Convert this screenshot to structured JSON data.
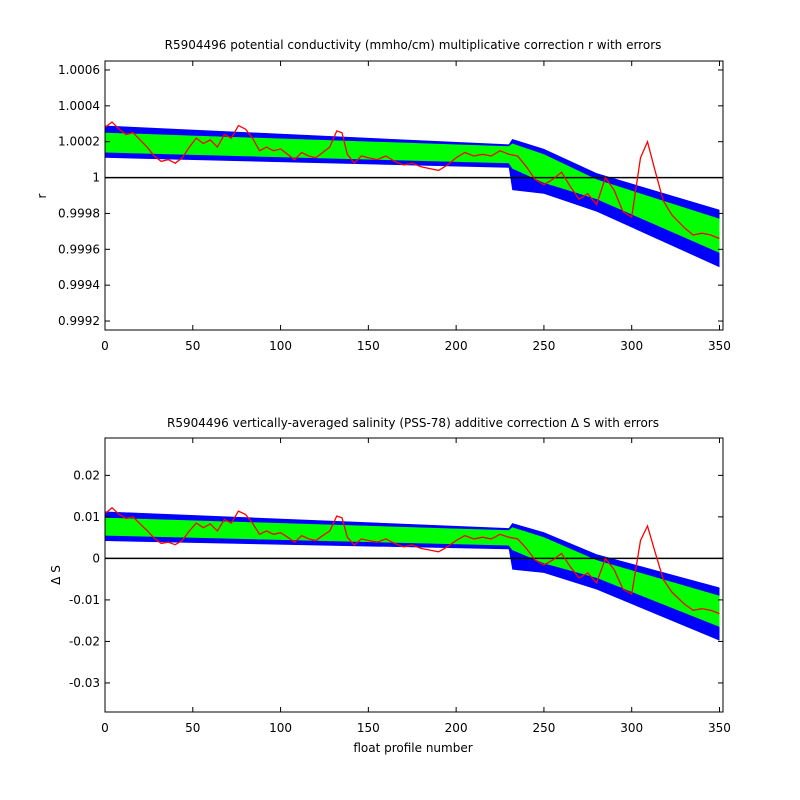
{
  "chart_data": [
    {
      "type": "line",
      "title": "R5904496 potential conductivity (mmho/cm) multiplicative correction r with errors",
      "xlabel": "",
      "ylabel": "r",
      "xlim": [
        0,
        352
      ],
      "ylim": [
        0.99915,
        1.00065
      ],
      "xticks": [
        0,
        50,
        100,
        150,
        200,
        250,
        300,
        350
      ],
      "xtick_labels": [
        "0",
        "50",
        "100",
        "150",
        "200",
        "250",
        "300",
        "350"
      ],
      "yticks": [
        0.9992,
        0.9994,
        0.9996,
        0.9998,
        1.0,
        1.0002,
        1.0004,
        1.0006
      ],
      "ytick_labels": [
        "0.9992",
        "0.9994",
        "0.9996",
        "0.9998",
        "1",
        "1.0002",
        "1.0004",
        "1.0006"
      ],
      "reference_line": 1.0,
      "band_x": [
        0,
        230,
        232,
        250,
        280,
        350
      ],
      "outer_upper": [
        1.00029,
        1.000185,
        1.000215,
        1.00016,
        1.000025,
        0.99982
      ],
      "inner_upper": [
        1.00025,
        1.000175,
        1.00019,
        1.00013,
        0.99999,
        0.99977
      ],
      "inner_lower": [
        1.00014,
        1.00008,
        1.00005,
        0.99997,
        0.99988,
        0.99958
      ],
      "outer_lower": [
        1.00011,
        1.000055,
        0.99993,
        0.99991,
        0.99981,
        0.9995
      ],
      "series": [
        {
          "x": [
            0,
            4,
            8,
            12,
            16,
            20,
            24,
            28,
            32,
            36,
            40,
            44,
            48,
            52,
            56,
            60,
            64,
            68,
            72,
            76,
            80,
            84,
            88,
            92,
            96,
            100,
            104,
            108,
            112,
            116,
            120,
            124,
            128,
            132,
            135,
            138,
            142,
            146,
            150,
            155,
            160,
            165,
            170,
            175,
            180,
            185,
            190,
            195,
            200,
            205,
            210,
            215,
            220,
            225,
            230,
            235,
            240,
            245,
            250,
            255,
            260,
            265,
            270,
            275,
            280,
            285,
            290,
            295,
            300,
            305,
            309,
            313,
            318,
            323,
            330,
            335,
            340,
            345,
            350
          ],
          "values": [
            1.00028,
            1.00031,
            1.00027,
            1.00024,
            1.00025,
            1.00021,
            1.00017,
            1.00012,
            1.00009,
            1.0001,
            1.00008,
            1.00011,
            1.00017,
            1.00022,
            1.00019,
            1.00021,
            1.00017,
            1.00024,
            1.00022,
            1.00029,
            1.00027,
            1.00022,
            1.00015,
            1.00017,
            1.00015,
            1.00016,
            1.00013,
            1.0001,
            1.00014,
            1.00012,
            1.00011,
            1.00014,
            1.00017,
            1.00026,
            1.00025,
            1.00013,
            1.00008,
            1.00012,
            1.00011,
            1.0001,
            1.00012,
            1.00009,
            1.00007,
            1.00008,
            1.00006,
            1.00005,
            1.00004,
            1.00007,
            1.00011,
            1.00014,
            1.00012,
            1.00013,
            1.00012,
            1.00015,
            1.00013,
            1.00012,
            1.00006,
            0.99999,
            0.99996,
            0.99999,
            1.00003,
            0.99995,
            0.99988,
            0.99991,
            0.99985,
            1.0,
            0.99993,
            0.99981,
            0.99978,
            1.00011,
            1.0002,
            1.00005,
            0.99987,
            0.99979,
            0.99972,
            0.99968,
            0.99969,
            0.99968,
            0.99966
          ]
        }
      ]
    },
    {
      "type": "line",
      "title": "R5904496 vertically-averaged salinity (PSS-78) additive correction Δ S with errors",
      "xlabel": "float profile number",
      "ylabel": "Δ S",
      "xlim": [
        0,
        352
      ],
      "ylim": [
        -0.037,
        0.029
      ],
      "xticks": [
        0,
        50,
        100,
        150,
        200,
        250,
        300,
        350
      ],
      "xtick_labels": [
        "0",
        "50",
        "100",
        "150",
        "200",
        "250",
        "300",
        "350"
      ],
      "yticks": [
        -0.03,
        -0.02,
        -0.01,
        0,
        0.01,
        0.02
      ],
      "ytick_labels": [
        "-0.03",
        "-0.02",
        "-0.01",
        "0",
        "0.01",
        "0.02"
      ],
      "reference_line": 0,
      "band_x": [
        0,
        230,
        232,
        250,
        280,
        350
      ],
      "outer_upper": [
        0.0113,
        0.0073,
        0.0085,
        0.0063,
        0.001,
        -0.007
      ],
      "inner_upper": [
        0.0098,
        0.0068,
        0.0075,
        0.0051,
        -0.0004,
        -0.009
      ],
      "inner_lower": [
        0.0055,
        0.0031,
        0.002,
        -0.0012,
        -0.0047,
        -0.0165
      ],
      "outer_lower": [
        0.0042,
        0.0022,
        -0.0027,
        -0.0035,
        -0.0075,
        -0.0198
      ],
      "series": [
        {
          "x": [
            0,
            4,
            8,
            12,
            16,
            20,
            24,
            28,
            32,
            36,
            40,
            44,
            48,
            52,
            56,
            60,
            64,
            68,
            72,
            76,
            80,
            84,
            88,
            92,
            96,
            100,
            104,
            108,
            112,
            116,
            120,
            124,
            128,
            132,
            135,
            138,
            142,
            146,
            150,
            155,
            160,
            165,
            170,
            175,
            180,
            185,
            190,
            195,
            200,
            205,
            210,
            215,
            220,
            225,
            230,
            235,
            240,
            245,
            250,
            255,
            260,
            265,
            270,
            275,
            280,
            285,
            290,
            295,
            300,
            305,
            309,
            313,
            318,
            323,
            330,
            335,
            340,
            345,
            350
          ],
          "values": [
            0.0108,
            0.0122,
            0.0106,
            0.0096,
            0.01,
            0.0083,
            0.0067,
            0.0049,
            0.0036,
            0.0039,
            0.0033,
            0.0043,
            0.0066,
            0.0085,
            0.0074,
            0.0083,
            0.0066,
            0.0094,
            0.0085,
            0.0114,
            0.0106,
            0.0085,
            0.0058,
            0.0066,
            0.0058,
            0.0062,
            0.0051,
            0.0039,
            0.0055,
            0.0047,
            0.0043,
            0.0055,
            0.0066,
            0.0102,
            0.0098,
            0.0051,
            0.0032,
            0.0047,
            0.0043,
            0.0039,
            0.0047,
            0.0036,
            0.0028,
            0.0032,
            0.0024,
            0.002,
            0.0016,
            0.0028,
            0.0043,
            0.0055,
            0.0047,
            0.0051,
            0.0047,
            0.0058,
            0.0051,
            0.0047,
            0.0024,
            -0.0004,
            -0.0016,
            -0.0004,
            0.0012,
            -0.002,
            -0.0047,
            -0.0035,
            -0.0059,
            0.0,
            -0.0027,
            -0.0074,
            -0.0086,
            0.0043,
            0.0078,
            0.002,
            -0.0051,
            -0.0082,
            -0.011,
            -0.0125,
            -0.0121,
            -0.0125,
            -0.0133
          ]
        }
      ]
    }
  ]
}
